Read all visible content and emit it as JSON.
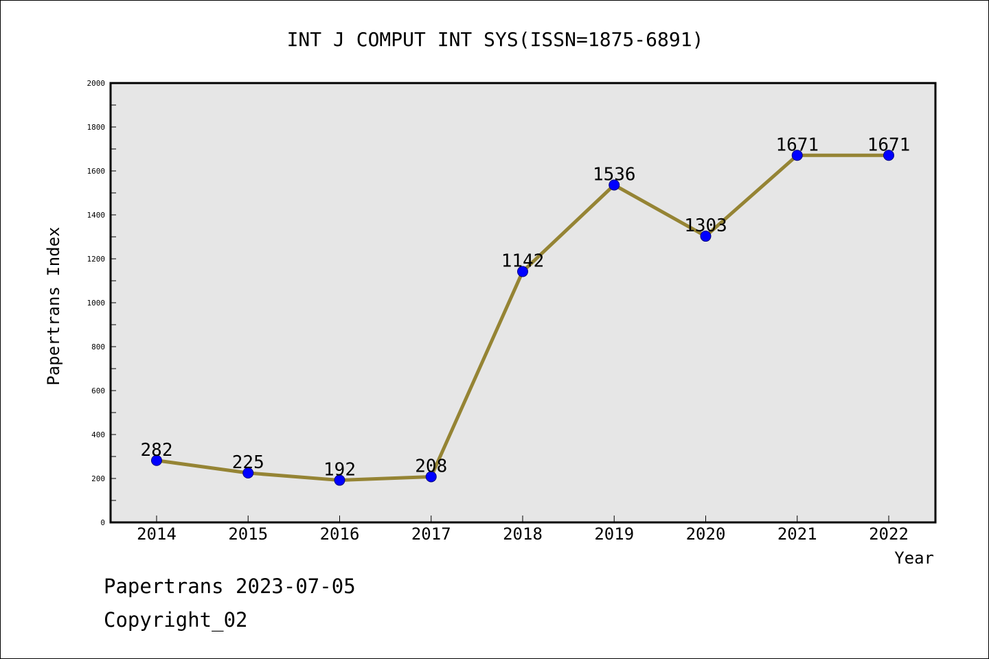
{
  "chart_data": {
    "type": "line",
    "title": "INT J COMPUT INT SYS(ISSN=1875-6891)",
    "xlabel": "Year",
    "ylabel": "Papertrans Index",
    "categories": [
      "2014",
      "2015",
      "2016",
      "2017",
      "2018",
      "2019",
      "2020",
      "2021",
      "2022"
    ],
    "values": [
      282,
      225,
      192,
      208,
      1142,
      1536,
      1303,
      1671,
      1671
    ],
    "data_labels": [
      "282",
      "225",
      "192",
      "208",
      "1142",
      "1536",
      "1303",
      "1671",
      "1671"
    ],
    "ylim": [
      0,
      2000
    ],
    "yticks": [
      0,
      200,
      400,
      600,
      800,
      1000,
      1200,
      1400,
      1600,
      1800,
      2000
    ],
    "ytick_labels": [
      "0",
      "200",
      "400",
      "600",
      "800",
      "1000",
      "1200",
      "1400",
      "1600",
      "1800",
      "2000"
    ],
    "grid": false,
    "colors": {
      "line": "#958434",
      "marker_fill": "#0000ff",
      "marker_stroke": "#000080",
      "plot_background": "#e6e6e6"
    }
  },
  "footer": {
    "line1": "Papertrans 2023-07-05",
    "line2": "Copyright_02"
  }
}
